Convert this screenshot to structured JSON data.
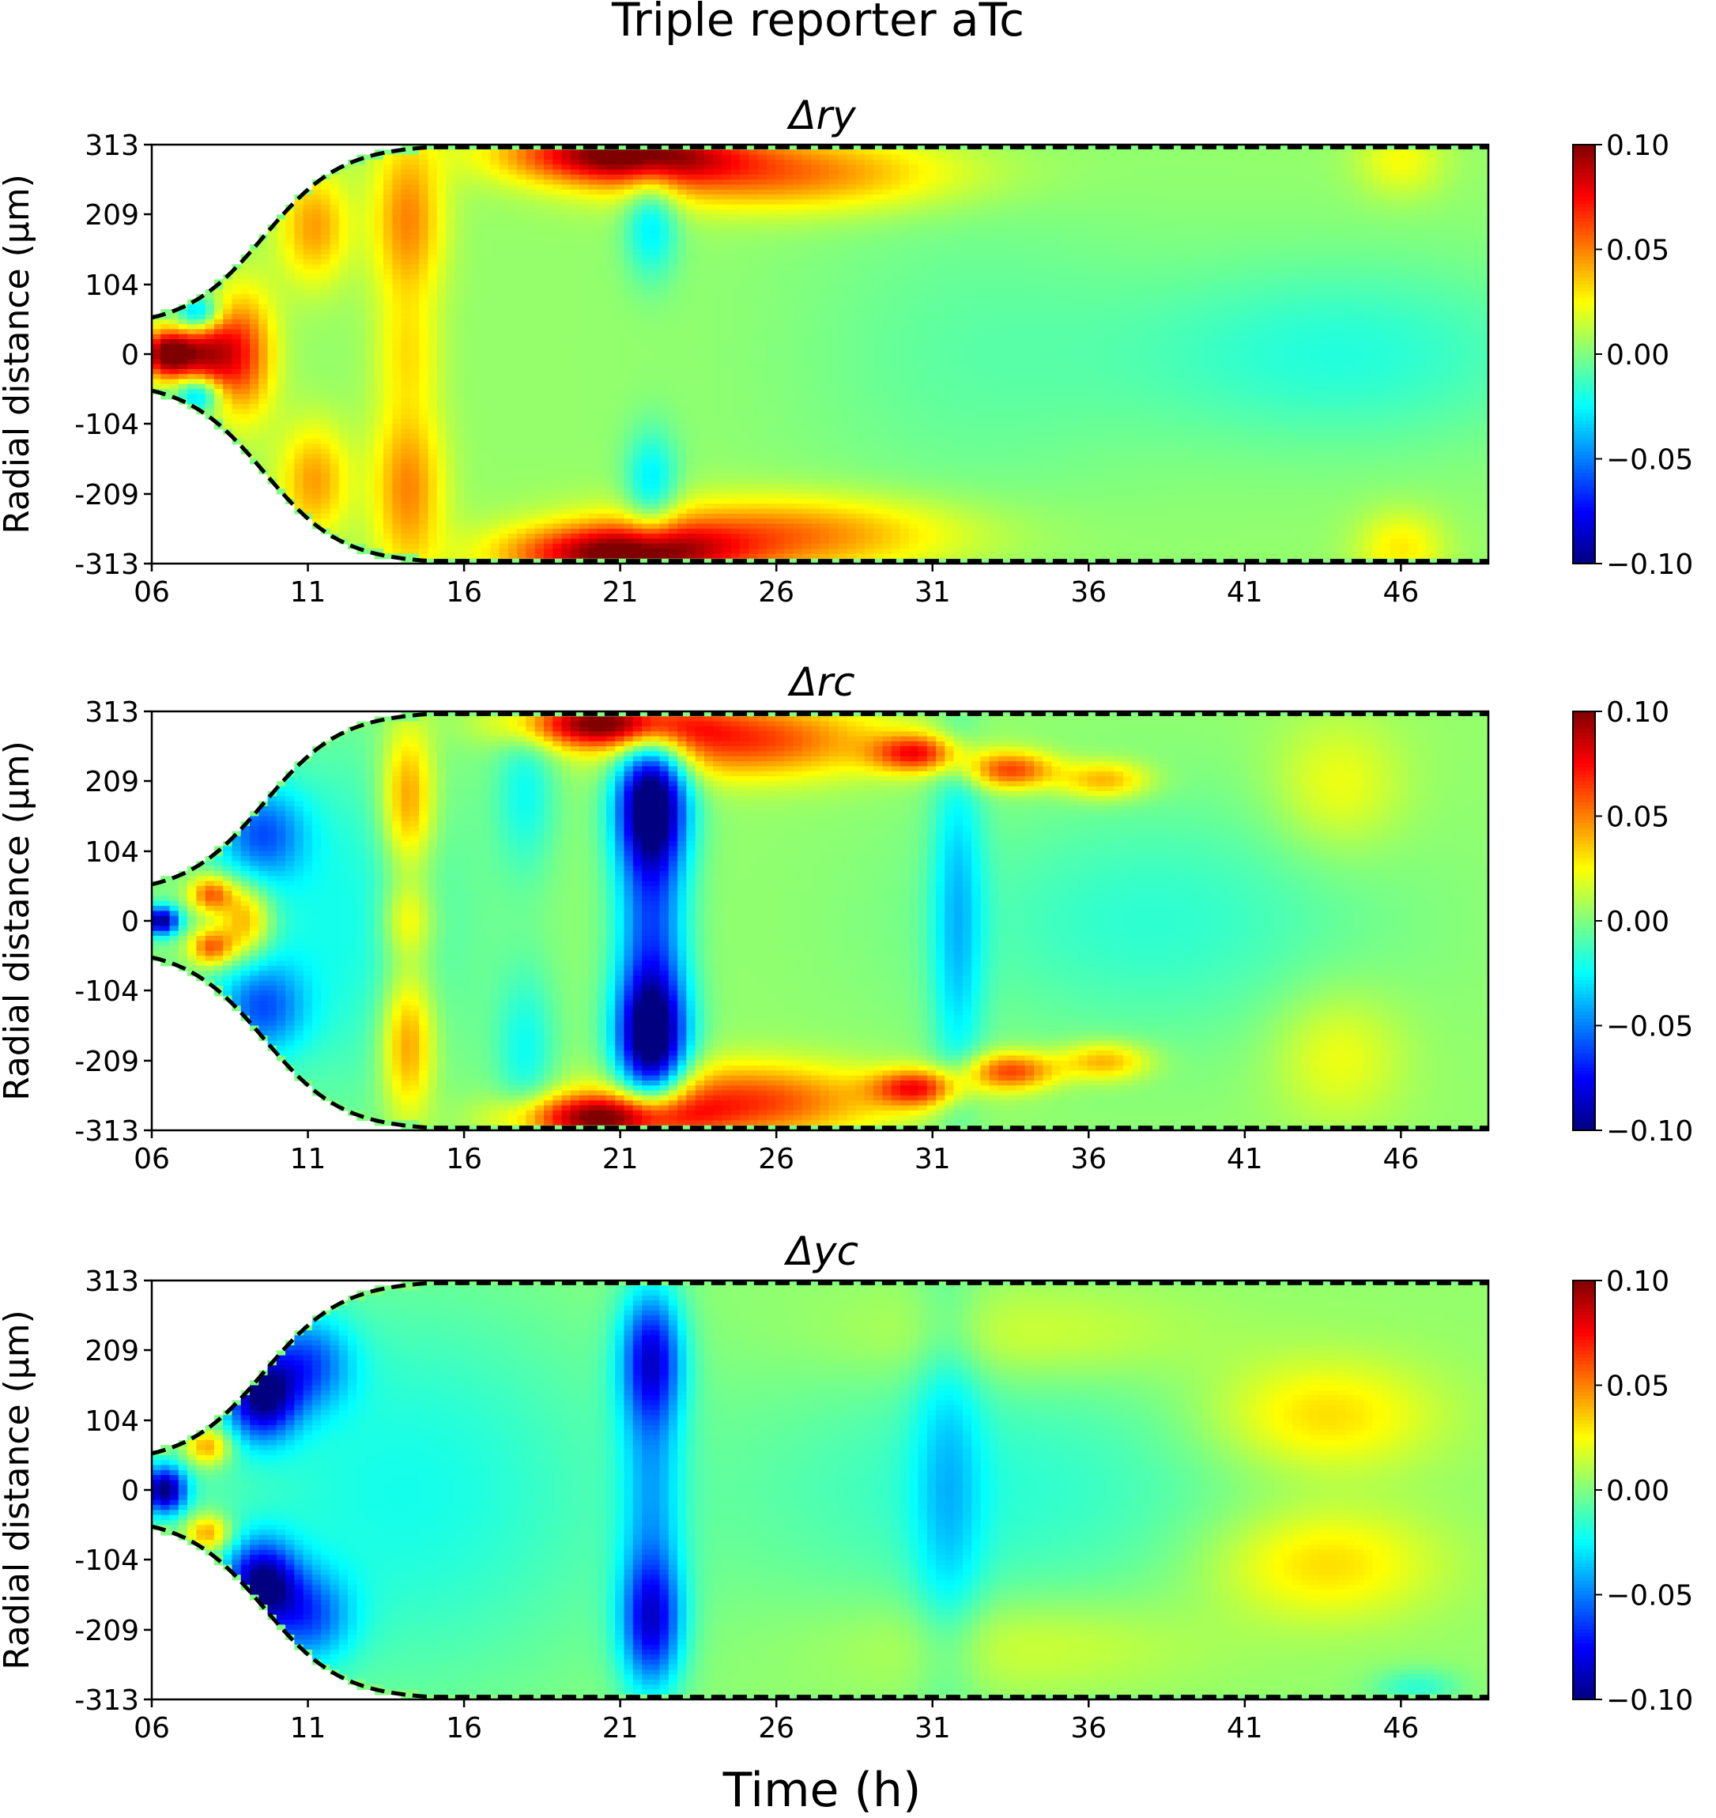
{
  "figure": {
    "suptitle": "Triple reporter  aTc",
    "xlabel": "Time (h)"
  },
  "chart_data": [
    {
      "type": "heatmap",
      "title": "Δry",
      "ylabel": "Radial distance (μm)",
      "x_ticks": [
        "06",
        "11",
        "16",
        "21",
        "26",
        "31",
        "36",
        "41",
        "46"
      ],
      "y_ticks": [
        "313",
        "209",
        "104",
        "0",
        "-104",
        "-209",
        "-313"
      ],
      "xlim": [
        6,
        48.8
      ],
      "ylim": [
        -313,
        313
      ],
      "colorbar": {
        "ticks": [
          "0.10",
          "0.05",
          "0.00",
          "−0.05",
          "−0.10"
        ],
        "vmin": -0.1,
        "vmax": 0.1,
        "cmap": "jet"
      },
      "boundary": "dashed-black",
      "features": [
        {
          "t": 6.5,
          "r": 0,
          "v": 0.1,
          "st": 0.6,
          "sr": 25
        },
        {
          "t": 7.8,
          "r": 0,
          "v": 0.07,
          "st": 0.7,
          "sr": 45
        },
        {
          "t": 9.0,
          "r": 0,
          "v": 0.05,
          "st": 0.7,
          "sr": 70
        },
        {
          "t": 7.5,
          "r": 60,
          "v": -0.06,
          "st": 0.5,
          "sr": 20
        },
        {
          "t": 7.5,
          "r": -60,
          "v": -0.06,
          "st": 0.5,
          "sr": 20
        },
        {
          "t": 11.2,
          "r": 190,
          "v": 0.04,
          "st": 0.8,
          "sr": 60
        },
        {
          "t": 11.2,
          "r": -190,
          "v": 0.04,
          "st": 0.8,
          "sr": 60
        },
        {
          "t": 14.2,
          "r": 200,
          "v": 0.045,
          "st": 0.8,
          "sr": 90
        },
        {
          "t": 14.2,
          "r": -200,
          "v": 0.045,
          "st": 0.8,
          "sr": 90
        },
        {
          "t": 14.2,
          "r": 0,
          "v": 0.02,
          "st": 0.7,
          "sr": 60
        },
        {
          "t": 21.0,
          "r": 300,
          "v": 0.09,
          "st": 2.5,
          "sr": 30
        },
        {
          "t": 21.0,
          "r": -300,
          "v": 0.09,
          "st": 2.5,
          "sr": 30
        },
        {
          "t": 26.0,
          "r": 270,
          "v": 0.05,
          "st": 4.0,
          "sr": 40
        },
        {
          "t": 26.0,
          "r": -270,
          "v": 0.05,
          "st": 4.0,
          "sr": 40
        },
        {
          "t": 22.0,
          "r": 200,
          "v": -0.035,
          "st": 0.6,
          "sr": 60
        },
        {
          "t": 22.0,
          "r": -200,
          "v": -0.035,
          "st": 0.6,
          "sr": 60
        },
        {
          "t": 32.0,
          "r": 0,
          "v": -0.01,
          "st": 4.0,
          "sr": 180
        },
        {
          "t": 44.0,
          "r": 0,
          "v": -0.022,
          "st": 5.0,
          "sr": 100
        },
        {
          "t": 46.0,
          "r": 290,
          "v": 0.02,
          "st": 1.0,
          "sr": 40
        },
        {
          "t": 46.0,
          "r": -290,
          "v": 0.025,
          "st": 1.0,
          "sr": 40
        }
      ]
    },
    {
      "type": "heatmap",
      "title": "Δrc",
      "ylabel": "Radial distance (μm)",
      "x_ticks": [
        "06",
        "11",
        "16",
        "21",
        "26",
        "31",
        "36",
        "41",
        "46"
      ],
      "y_ticks": [
        "313",
        "209",
        "104",
        "0",
        "-104",
        "-209",
        "-313"
      ],
      "xlim": [
        6,
        48.8
      ],
      "ylim": [
        -313,
        313
      ],
      "colorbar": {
        "ticks": [
          "0.10",
          "0.05",
          "0.00",
          "−0.05",
          "−0.10"
        ],
        "vmin": -0.1,
        "vmax": 0.1,
        "cmap": "jet"
      },
      "boundary": "dashed-black",
      "features": [
        {
          "t": 6.3,
          "r": 0,
          "v": -0.1,
          "st": 0.4,
          "sr": 15
        },
        {
          "t": 7.9,
          "r": 40,
          "v": 0.06,
          "st": 0.5,
          "sr": 20
        },
        {
          "t": 7.9,
          "r": -40,
          "v": 0.06,
          "st": 0.5,
          "sr": 20
        },
        {
          "t": 9.0,
          "r": 0,
          "v": 0.05,
          "st": 0.6,
          "sr": 40
        },
        {
          "t": 9.5,
          "r": 130,
          "v": -0.05,
          "st": 1.0,
          "sr": 50
        },
        {
          "t": 9.5,
          "r": -130,
          "v": -0.05,
          "st": 1.0,
          "sr": 50
        },
        {
          "t": 12.0,
          "r": 0,
          "v": -0.025,
          "st": 3.0,
          "sr": 200
        },
        {
          "t": 14.2,
          "r": 180,
          "v": 0.05,
          "st": 0.6,
          "sr": 80
        },
        {
          "t": 14.2,
          "r": -180,
          "v": 0.05,
          "st": 0.6,
          "sr": 80
        },
        {
          "t": 14.2,
          "r": 0,
          "v": 0.03,
          "st": 0.6,
          "sr": 40
        },
        {
          "t": 18.0,
          "r": 200,
          "v": -0.025,
          "st": 0.7,
          "sr": 90
        },
        {
          "t": 18.0,
          "r": -200,
          "v": -0.025,
          "st": 0.7,
          "sr": 90
        },
        {
          "t": 22.0,
          "r": 180,
          "v": -0.1,
          "st": 0.8,
          "sr": 70
        },
        {
          "t": 22.0,
          "r": -180,
          "v": -0.1,
          "st": 0.8,
          "sr": 70
        },
        {
          "t": 22.0,
          "r": 0,
          "v": -0.06,
          "st": 0.8,
          "sr": 150
        },
        {
          "t": 20.5,
          "r": 295,
          "v": 0.09,
          "st": 2.0,
          "sr": 25
        },
        {
          "t": 20.5,
          "r": -295,
          "v": 0.09,
          "st": 2.0,
          "sr": 25
        },
        {
          "t": 25.0,
          "r": 270,
          "v": 0.06,
          "st": 3.0,
          "sr": 40
        },
        {
          "t": 25.0,
          "r": -270,
          "v": 0.06,
          "st": 3.0,
          "sr": 40
        },
        {
          "t": 30.5,
          "r": 250,
          "v": 0.065,
          "st": 1.0,
          "sr": 20
        },
        {
          "t": 30.5,
          "r": -250,
          "v": 0.065,
          "st": 1.0,
          "sr": 20
        },
        {
          "t": 33.5,
          "r": 225,
          "v": 0.06,
          "st": 1.0,
          "sr": 20
        },
        {
          "t": 33.5,
          "r": -225,
          "v": 0.06,
          "st": 1.0,
          "sr": 20
        },
        {
          "t": 36.5,
          "r": 210,
          "v": 0.04,
          "st": 1.0,
          "sr": 20
        },
        {
          "t": 36.5,
          "r": -210,
          "v": 0.04,
          "st": 1.0,
          "sr": 20
        },
        {
          "t": 31.8,
          "r": 0,
          "v": -0.035,
          "st": 0.6,
          "sr": 200
        },
        {
          "t": 38.0,
          "r": 0,
          "v": -0.02,
          "st": 5.0,
          "sr": 130
        },
        {
          "t": 44.0,
          "r": 200,
          "v": 0.02,
          "st": 1.5,
          "sr": 70
        },
        {
          "t": 44.0,
          "r": -200,
          "v": 0.02,
          "st": 1.5,
          "sr": 70
        }
      ]
    },
    {
      "type": "heatmap",
      "title": "Δyc",
      "ylabel": "Radial distance (μm)",
      "x_ticks": [
        "06",
        "11",
        "16",
        "21",
        "26",
        "31",
        "36",
        "41",
        "46"
      ],
      "y_ticks": [
        "313",
        "209",
        "104",
        "0",
        "-104",
        "-209",
        "-313"
      ],
      "xlim": [
        6,
        48.8
      ],
      "ylim": [
        -313,
        313
      ],
      "colorbar": {
        "ticks": [
          "0.10",
          "0.05",
          "0.00",
          "−0.05",
          "−0.10"
        ],
        "vmin": -0.1,
        "vmax": 0.1,
        "cmap": "jet"
      },
      "boundary": "dashed-black",
      "features": [
        {
          "t": 6.4,
          "r": 0,
          "v": -0.1,
          "st": 0.5,
          "sr": 25
        },
        {
          "t": 7.8,
          "r": 65,
          "v": 0.05,
          "st": 0.5,
          "sr": 20
        },
        {
          "t": 7.8,
          "r": -65,
          "v": 0.05,
          "st": 0.5,
          "sr": 20
        },
        {
          "t": 9.5,
          "r": 140,
          "v": -0.09,
          "st": 0.8,
          "sr": 45
        },
        {
          "t": 9.5,
          "r": -140,
          "v": -0.09,
          "st": 0.8,
          "sr": 45
        },
        {
          "t": 11.0,
          "r": 190,
          "v": -0.05,
          "st": 1.0,
          "sr": 50
        },
        {
          "t": 11.0,
          "r": -190,
          "v": -0.05,
          "st": 1.0,
          "sr": 50
        },
        {
          "t": 14.0,
          "r": 0,
          "v": -0.025,
          "st": 5.0,
          "sr": 220
        },
        {
          "t": 22.0,
          "r": 200,
          "v": -0.07,
          "st": 0.7,
          "sr": 70
        },
        {
          "t": 22.0,
          "r": -200,
          "v": -0.07,
          "st": 0.7,
          "sr": 70
        },
        {
          "t": 22.0,
          "r": 0,
          "v": -0.035,
          "st": 0.7,
          "sr": 150
        },
        {
          "t": 31.5,
          "r": 0,
          "v": -0.025,
          "st": 0.8,
          "sr": 220
        },
        {
          "t": 33.0,
          "r": 0,
          "v": -0.02,
          "st": 6.0,
          "sr": 140
        },
        {
          "t": 43.5,
          "r": 110,
          "v": 0.03,
          "st": 2.5,
          "sr": 60
        },
        {
          "t": 43.5,
          "r": -110,
          "v": 0.03,
          "st": 2.5,
          "sr": 60
        },
        {
          "t": 34.0,
          "r": 230,
          "v": 0.015,
          "st": 4.0,
          "sr": 50
        },
        {
          "t": 34.0,
          "r": -230,
          "v": 0.015,
          "st": 4.0,
          "sr": 50
        },
        {
          "t": 46.5,
          "r": -295,
          "v": -0.02,
          "st": 1.0,
          "sr": 20
        }
      ]
    }
  ]
}
